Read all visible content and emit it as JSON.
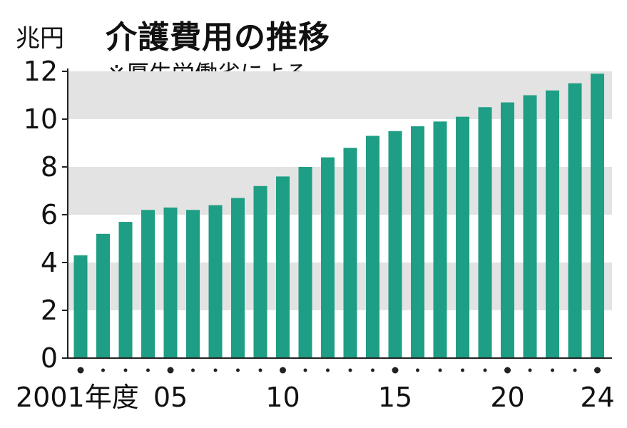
{
  "header": {
    "unit": "兆円",
    "title": "介護費用の推移",
    "note": "※厚生労働省による"
  },
  "colors": {
    "bar": "#1e9e84",
    "band": "#e3e3e3",
    "axis": "#222222",
    "text": "#111111"
  },
  "chart_data": {
    "type": "bar",
    "categories": [
      "2001",
      "2002",
      "2003",
      "2004",
      "2005",
      "2006",
      "2007",
      "2008",
      "2009",
      "2010",
      "2011",
      "2012",
      "2013",
      "2014",
      "2015",
      "2016",
      "2017",
      "2018",
      "2019",
      "2020",
      "2021",
      "2022",
      "2023",
      "2024"
    ],
    "values": [
      4.3,
      5.2,
      5.7,
      6.2,
      6.3,
      6.2,
      6.4,
      6.7,
      7.2,
      7.6,
      8.0,
      8.4,
      8.8,
      9.3,
      9.5,
      9.7,
      9.9,
      10.1,
      10.5,
      10.7,
      11.0,
      11.2,
      11.5,
      11.9
    ],
    "ylim": [
      0,
      12
    ],
    "yticks": [
      "0",
      "2",
      "4",
      "6",
      "8",
      "10",
      "12"
    ],
    "xtick_labels": [
      {
        "index": 0,
        "label": "2001年度"
      },
      {
        "index": 4,
        "label": "05"
      },
      {
        "index": 9,
        "label": "10"
      },
      {
        "index": 14,
        "label": "15"
      },
      {
        "index": 19,
        "label": "20"
      },
      {
        "index": 23,
        "label": "24"
      }
    ],
    "shaded_bands": [
      [
        2,
        4
      ],
      [
        6,
        8
      ],
      [
        10,
        12
      ]
    ]
  }
}
